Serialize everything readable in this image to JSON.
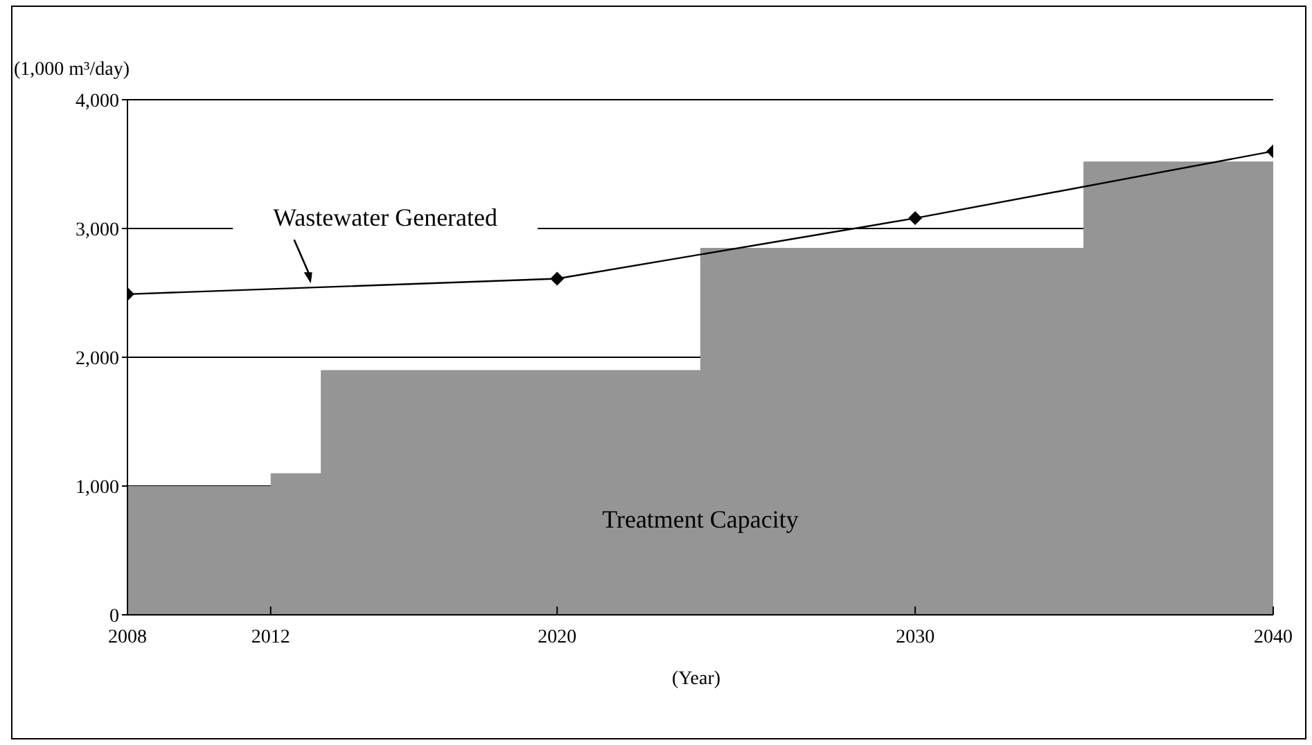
{
  "chart_data": {
    "type": "line",
    "xlabel": "(Year)",
    "ylabel": "(1,000 m³/day)",
    "xlim": [
      2008,
      2040
    ],
    "xticks": [
      2008,
      2012,
      2020,
      2030,
      2040
    ],
    "ylim": [
      0,
      4000
    ],
    "yticks": [
      {
        "value": 0,
        "label": "0"
      },
      {
        "value": 1000,
        "label": "1,000"
      },
      {
        "value": 2000,
        "label": "2,000"
      },
      {
        "value": 3000,
        "label": "3,000"
      },
      {
        "value": 4000,
        "label": "4,000"
      }
    ],
    "grid": "y",
    "legend": false,
    "series": [
      {
        "name": "Treatment Capacity",
        "type": "area",
        "color": "#959595",
        "x": [
          2008,
          2012,
          2012,
          2013.4,
          2013.4,
          2024,
          2024,
          2034.7,
          2034.7,
          2040
        ],
        "values": [
          1000,
          1000,
          1100,
          1100,
          1900,
          1900,
          2850,
          2850,
          3520,
          3520
        ]
      },
      {
        "name": "Wastewater Generated",
        "marker": "diamond",
        "color": "#000000",
        "x": [
          2008,
          2020,
          2030,
          2040
        ],
        "values": [
          2490,
          2610,
          3080,
          3600
        ]
      }
    ]
  }
}
